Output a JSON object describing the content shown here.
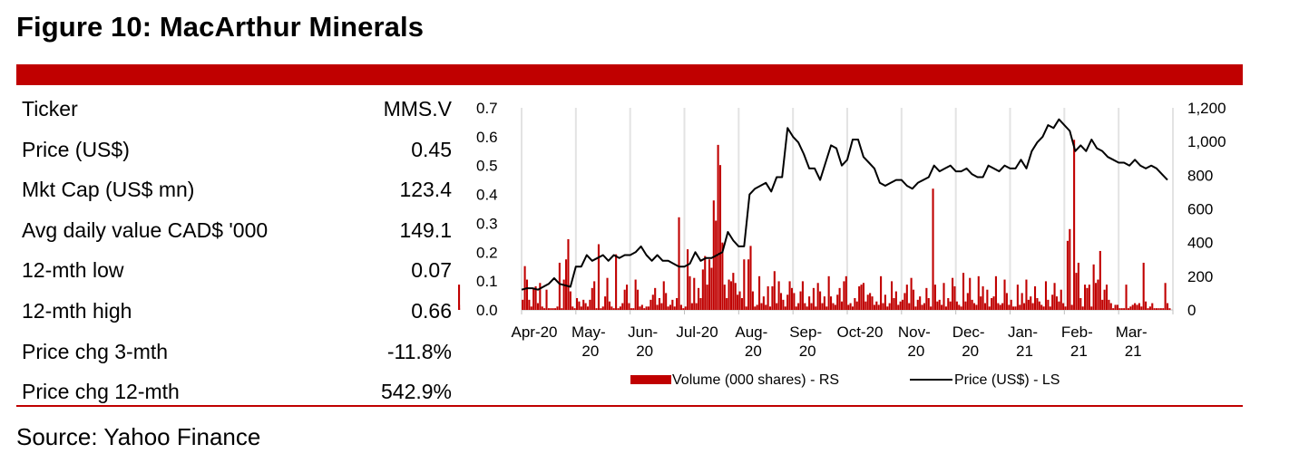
{
  "figure": {
    "title": "Figure 10: MacArthur Minerals",
    "source": "Source: Yahoo Finance",
    "accent_color": "#c00000"
  },
  "stats": [
    {
      "label": "Ticker",
      "value": "MMS.V"
    },
    {
      "label": "Price (US$)",
      "value": "0.45"
    },
    {
      "label": "Mkt Cap (US$ mn)",
      "value": "123.4"
    },
    {
      "label": "Avg daily value CAD$ '000",
      "value": "149.1"
    },
    {
      "label": "12-mth low",
      "value": "0.07"
    },
    {
      "label": "12-mth high",
      "value": "0.66"
    },
    {
      "label": "Price chg 3-mth",
      "value": "-11.8%"
    },
    {
      "label": "Price chg 12-mth",
      "value": "542.9%"
    }
  ],
  "chart_data": {
    "type": "bar+line",
    "title": "",
    "x_ticks": [
      {
        "line1": "Apr-20",
        "line2": ""
      },
      {
        "line1": "May-",
        "line2": "20"
      },
      {
        "line1": "Jun-",
        "line2": "20"
      },
      {
        "line1": "Jul-20",
        "line2": ""
      },
      {
        "line1": "Aug-",
        "line2": "20"
      },
      {
        "line1": "Sep-",
        "line2": "20"
      },
      {
        "line1": "Oct-20",
        "line2": ""
      },
      {
        "line1": "Nov-",
        "line2": "20"
      },
      {
        "line1": "Dec-",
        "line2": "20"
      },
      {
        "line1": "Jan-",
        "line2": "21"
      },
      {
        "line1": "Feb-",
        "line2": "21"
      },
      {
        "line1": "Mar-",
        "line2": "21"
      }
    ],
    "left_axis": {
      "label": "Price (US$)",
      "ylim": [
        0,
        0.7
      ],
      "ticks": [
        "0.0",
        "0.1",
        "0.2",
        "0.3",
        "0.4",
        "0.5",
        "0.6",
        "0.7"
      ]
    },
    "right_axis": {
      "label": "Volume (000 shares)",
      "ylim": [
        0,
        1200
      ],
      "ticks": [
        "0",
        "200",
        "400",
        "600",
        "800",
        "1,000",
        "1,200"
      ]
    },
    "legend": [
      {
        "name": "Volume (000 shares) - RS",
        "type": "bar",
        "color": "#c00000"
      },
      {
        "name": "Price (US$) - LS",
        "type": "line",
        "color": "#000000"
      }
    ],
    "legend_position": "bottom",
    "grid": "vertical-monthly",
    "series": [
      {
        "name": "Price (US$) - LS",
        "axis": "left",
        "x_month_index": [
          0,
          0.1,
          0.2,
          0.3,
          0.4,
          0.5,
          0.6,
          0.7,
          0.8,
          0.9,
          1.0,
          1.1,
          1.2,
          1.3,
          1.4,
          1.5,
          1.6,
          1.7,
          1.8,
          1.9,
          2.0,
          2.1,
          2.2,
          2.3,
          2.4,
          2.5,
          2.6,
          2.7,
          2.8,
          2.9,
          3.0,
          3.1,
          3.2,
          3.3,
          3.4,
          3.5,
          3.6,
          3.7,
          3.8,
          3.9,
          4.0,
          4.1,
          4.2,
          4.3,
          4.4,
          4.5,
          4.6,
          4.7,
          4.8,
          4.9,
          5.0,
          5.1,
          5.2,
          5.3,
          5.4,
          5.5,
          5.6,
          5.7,
          5.8,
          5.9,
          6.0,
          6.1,
          6.2,
          6.3,
          6.4,
          6.5,
          6.6,
          6.7,
          6.8,
          6.9,
          7.0,
          7.1,
          7.2,
          7.3,
          7.4,
          7.5,
          7.6,
          7.7,
          7.8,
          7.9,
          8.0,
          8.1,
          8.2,
          8.3,
          8.4,
          8.5,
          8.6,
          8.7,
          8.8,
          8.9,
          9.0,
          9.1,
          9.2,
          9.3,
          9.4,
          9.5,
          9.6,
          9.7,
          9.8,
          9.9,
          10.0,
          10.1,
          10.2,
          10.3,
          10.4,
          10.5,
          10.6,
          10.7,
          10.8,
          10.9,
          11.0,
          11.1,
          11.2,
          11.3,
          11.4,
          11.5,
          11.6,
          11.7,
          11.8,
          11.9
        ],
        "values": [
          0.07,
          0.075,
          0.075,
          0.07,
          0.08,
          0.09,
          0.11,
          0.09,
          0.085,
          0.08,
          0.15,
          0.15,
          0.19,
          0.17,
          0.18,
          0.19,
          0.17,
          0.19,
          0.18,
          0.19,
          0.19,
          0.2,
          0.22,
          0.19,
          0.17,
          0.19,
          0.17,
          0.17,
          0.16,
          0.15,
          0.15,
          0.16,
          0.2,
          0.17,
          0.18,
          0.18,
          0.19,
          0.2,
          0.27,
          0.24,
          0.22,
          0.22,
          0.4,
          0.42,
          0.43,
          0.44,
          0.41,
          0.46,
          0.46,
          0.63,
          0.6,
          0.58,
          0.54,
          0.49,
          0.49,
          0.45,
          0.51,
          0.57,
          0.56,
          0.5,
          0.52,
          0.59,
          0.59,
          0.53,
          0.51,
          0.49,
          0.44,
          0.43,
          0.44,
          0.45,
          0.45,
          0.43,
          0.42,
          0.44,
          0.45,
          0.46,
          0.5,
          0.48,
          0.49,
          0.5,
          0.48,
          0.48,
          0.49,
          0.47,
          0.46,
          0.46,
          0.5,
          0.49,
          0.48,
          0.5,
          0.49,
          0.49,
          0.52,
          0.49,
          0.55,
          0.58,
          0.6,
          0.64,
          0.63,
          0.66,
          0.64,
          0.62,
          0.55,
          0.57,
          0.55,
          0.59,
          0.56,
          0.55,
          0.53,
          0.52,
          0.51,
          0.51,
          0.5,
          0.52,
          0.5,
          0.49,
          0.5,
          0.49,
          0.47,
          0.45
        ]
      },
      {
        "name": "Volume (000 shares) - RS",
        "axis": "right",
        "x_month_index": [
          0.02,
          0.06,
          0.1,
          0.14,
          0.18,
          0.22,
          0.26,
          0.3,
          0.34,
          0.38,
          0.42,
          0.46,
          0.5,
          0.54,
          0.58,
          0.62,
          0.66,
          0.7,
          0.74,
          0.78,
          0.82,
          0.86,
          0.9,
          0.94,
          0.98,
          1.02,
          1.06,
          1.1,
          1.14,
          1.18,
          1.22,
          1.26,
          1.3,
          1.34,
          1.38,
          1.42,
          1.46,
          1.5,
          1.54,
          1.58,
          1.62,
          1.66,
          1.7,
          1.74,
          1.78,
          1.82,
          1.86,
          1.9,
          1.94,
          1.98,
          2.02,
          2.06,
          2.1,
          2.14,
          2.18,
          2.22,
          2.26,
          2.3,
          2.34,
          2.38,
          2.42,
          2.46,
          2.5,
          2.54,
          2.58,
          2.62,
          2.66,
          2.7,
          2.74,
          2.78,
          2.82,
          2.86,
          2.9,
          2.94,
          2.98,
          3.02,
          3.06,
          3.1,
          3.14,
          3.18,
          3.22,
          3.26,
          3.3,
          3.34,
          3.38,
          3.42,
          3.46,
          3.5,
          3.54,
          3.58,
          3.62,
          3.66,
          3.7,
          3.74,
          3.78,
          3.82,
          3.86,
          3.9,
          3.94,
          3.98,
          4.02,
          4.06,
          4.1,
          4.14,
          4.18,
          4.22,
          4.26,
          4.3,
          4.34,
          4.38,
          4.42,
          4.46,
          4.5,
          4.54,
          4.58,
          4.62,
          4.66,
          4.7,
          4.74,
          4.78,
          4.82,
          4.86,
          4.9,
          4.94,
          4.98,
          5.02,
          5.06,
          5.1,
          5.14,
          5.18,
          5.22,
          5.26,
          5.3,
          5.34,
          5.38,
          5.42,
          5.46,
          5.5,
          5.54,
          5.58,
          5.62,
          5.66,
          5.7,
          5.74,
          5.78,
          5.82,
          5.86,
          5.9,
          5.94,
          5.98,
          6.02,
          6.06,
          6.1,
          6.14,
          6.18,
          6.22,
          6.26,
          6.3,
          6.34,
          6.38,
          6.42,
          6.46,
          6.5,
          6.54,
          6.58,
          6.62,
          6.66,
          6.7,
          6.74,
          6.78,
          6.82,
          6.86,
          6.9,
          6.94,
          6.98,
          7.02,
          7.06,
          7.1,
          7.14,
          7.18,
          7.22,
          7.26,
          7.3,
          7.34,
          7.38,
          7.42,
          7.46,
          7.5,
          7.54,
          7.58,
          7.62,
          7.66,
          7.7,
          7.74,
          7.78,
          7.82,
          7.86,
          7.9,
          7.94,
          7.98,
          8.02,
          8.06,
          8.1,
          8.14,
          8.18,
          8.22,
          8.26,
          8.3,
          8.34,
          8.38,
          8.42,
          8.46,
          8.5,
          8.54,
          8.58,
          8.62,
          8.66,
          8.7,
          8.74,
          8.78,
          8.82,
          8.86,
          8.9,
          8.94,
          8.98,
          9.02,
          9.06,
          9.1,
          9.14,
          9.18,
          9.22,
          9.26,
          9.3,
          9.34,
          9.38,
          9.42,
          9.46,
          9.5,
          9.54,
          9.58,
          9.62,
          9.66,
          9.7,
          9.74,
          9.78,
          9.82,
          9.86,
          9.9,
          9.94,
          9.98,
          10.02,
          10.06,
          10.1,
          10.14,
          10.18,
          10.22,
          10.26,
          10.3,
          10.34,
          10.38,
          10.42,
          10.46,
          10.5,
          10.54,
          10.58,
          10.62,
          10.66,
          10.7,
          10.74,
          10.78,
          10.82,
          10.86,
          10.9,
          10.94,
          10.98,
          11.02,
          11.06,
          11.1,
          11.14,
          11.18,
          11.22,
          11.26,
          11.3,
          11.34,
          11.38,
          11.42,
          11.46,
          11.5,
          11.54,
          11.58,
          11.62,
          11.66,
          11.7,
          11.74,
          11.78,
          11.82,
          11.86,
          11.9,
          11.94
        ],
        "values": [
          60,
          260,
          180,
          60,
          20,
          130,
          140,
          40,
          160,
          20,
          10,
          120,
          10,
          10,
          10,
          10,
          20,
          280,
          10,
          180,
          300,
          420,
          110,
          20,
          10,
          70,
          50,
          20,
          60,
          40,
          20,
          60,
          130,
          170,
          10,
          390,
          10,
          20,
          80,
          190,
          50,
          20,
          10,
          330,
          10,
          20,
          40,
          120,
          150,
          40,
          10,
          10,
          180,
          120,
          20,
          30,
          10,
          20,
          20,
          60,
          90,
          130,
          30,
          70,
          40,
          170,
          100,
          20,
          30,
          60,
          20,
          70,
          550,
          30,
          10,
          20,
          360,
          200,
          40,
          190,
          40,
          130,
          70,
          240,
          320,
          150,
          300,
          250,
          650,
          530,
          980,
          860,
          400,
          150,
          70,
          180,
          170,
          220,
          160,
          90,
          110,
          70,
          300,
          20,
          300,
          380,
          110,
          20,
          30,
          200,
          40,
          80,
          30,
          140,
          20,
          140,
          230,
          40,
          170,
          100,
          60,
          20,
          90,
          170,
          130,
          100,
          20,
          40,
          110,
          170,
          40,
          20,
          80,
          40,
          130,
          20,
          160,
          110,
          40,
          80,
          20,
          200,
          80,
          40,
          30,
          90,
          130,
          50,
          170,
          200,
          30,
          40,
          20,
          70,
          50,
          140,
          150,
          160,
          50,
          90,
          100,
          80,
          30,
          50,
          30,
          200,
          40,
          90,
          20,
          40,
          170,
          70,
          110,
          30,
          50,
          60,
          100,
          150,
          40,
          190,
          120,
          20,
          60,
          80,
          30,
          40,
          130,
          70,
          20,
          720,
          150,
          50,
          60,
          30,
          160,
          20,
          70,
          50,
          190,
          140,
          50,
          30,
          20,
          220,
          50,
          100,
          190,
          60,
          40,
          30,
          200,
          80,
          140,
          40,
          120,
          20,
          70,
          80,
          200,
          40,
          30,
          40,
          180,
          100,
          30,
          60,
          20,
          20,
          150,
          30,
          100,
          40,
          180,
          60,
          80,
          40,
          140,
          70,
          50,
          30,
          20,
          170,
          60,
          20,
          90,
          160,
          80,
          50,
          120,
          40,
          20,
          410,
          480,
          30,
          1010,
          220,
          280,
          70,
          20,
          150,
          130,
          150,
          20,
          270,
          160,
          180,
          350,
          60,
          120,
          150,
          60,
          40,
          10,
          30,
          30,
          10,
          10,
          10,
          150,
          10,
          20,
          30,
          40,
          30,
          40,
          20,
          280,
          50,
          10,
          20,
          40,
          10,
          10,
          10,
          10,
          10,
          160,
          40,
          10,
          30,
          150,
          10
        ]
      }
    ]
  }
}
